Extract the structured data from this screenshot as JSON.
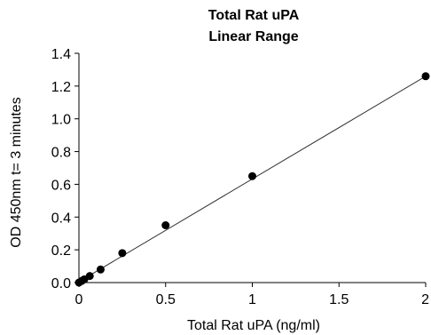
{
  "chart_data": {
    "type": "scatter",
    "title_line1": "Total Rat uPA",
    "title_line2": "Linear Range",
    "xlabel": "Total  Rat uPA (ng/ml)",
    "ylabel": "OD 450nm t= 3 minutes",
    "xlim": [
      0,
      2
    ],
    "ylim": [
      0,
      1.4
    ],
    "x_ticks": [
      "0",
      "0.5",
      "1",
      "1.5",
      "2"
    ],
    "y_ticks": [
      "0.0",
      "0.2",
      "0.4",
      "0.6",
      "0.8",
      "1.0",
      "1.2",
      "1.4"
    ],
    "grid": false,
    "legend": "none",
    "series": [
      {
        "points": [
          {
            "x": 0.0,
            "y": 0.0
          },
          {
            "x": 0.016,
            "y": 0.01
          },
          {
            "x": 0.031,
            "y": 0.02
          },
          {
            "x": 0.0625,
            "y": 0.04
          },
          {
            "x": 0.125,
            "y": 0.08
          },
          {
            "x": 0.25,
            "y": 0.18
          },
          {
            "x": 0.5,
            "y": 0.35
          },
          {
            "x": 1.0,
            "y": 0.65
          },
          {
            "x": 2.0,
            "y": 1.26
          }
        ]
      }
    ],
    "trendline": {
      "x1": 0,
      "y1": 0.005,
      "x2": 2,
      "y2": 1.26
    },
    "colors": {
      "marker": "#000000",
      "line": "#333333",
      "axis": "#000000"
    }
  }
}
